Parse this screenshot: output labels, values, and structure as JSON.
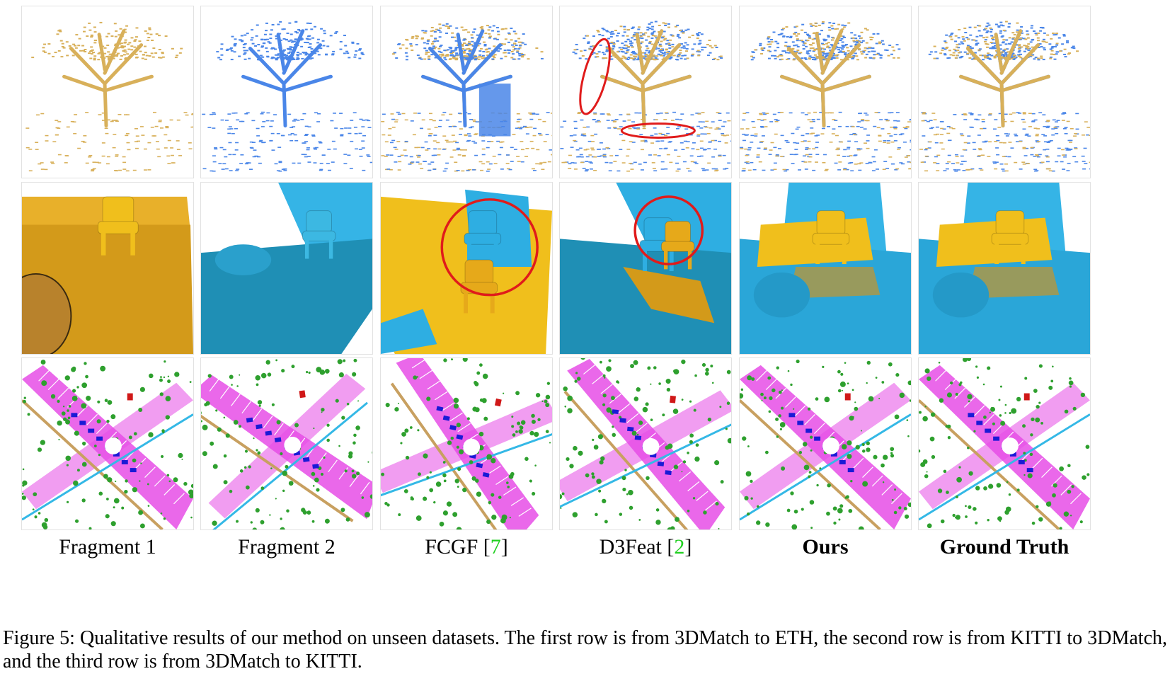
{
  "columns": [
    {
      "label": "Fragment 1",
      "cite": "",
      "bold": false
    },
    {
      "label": "Fragment 2",
      "cite": "",
      "bold": false
    },
    {
      "label": "FCGF ",
      "cite": "7",
      "bold": false
    },
    {
      "label": "D3Feat ",
      "cite": "2",
      "bold": false
    },
    {
      "label": "Ours",
      "cite": "",
      "bold": true
    },
    {
      "label": "Ground Truth",
      "cite": "",
      "bold": true
    }
  ],
  "rows": [
    {
      "scene": "tree",
      "description": "3DMatch to ETH"
    },
    {
      "scene": "chair-room",
      "description": "KITTI to 3DMatch"
    },
    {
      "scene": "street-segmentation",
      "description": "3DMatch to KITTI"
    }
  ],
  "colors": {
    "source_fragment": "#d8b05a",
    "target_fragment": "#4a86e8",
    "source_mesh": "#f0bf1c",
    "target_mesh": "#2eaee2",
    "failure_marker": "#e01b1b",
    "citation": "#1fcf1f",
    "road": "#e64de6",
    "vegetation": "#2ea02e",
    "car": "#1a1ad6",
    "sidewalk": "#c8a060"
  },
  "caption": {
    "text": "Figure 5: Qualitative results of our method on unseen datasets. The first row is from 3DMatch to ETH, the second row is from KITTI to 3DMatch, and the third row is from 3DMatch to KITTI."
  }
}
